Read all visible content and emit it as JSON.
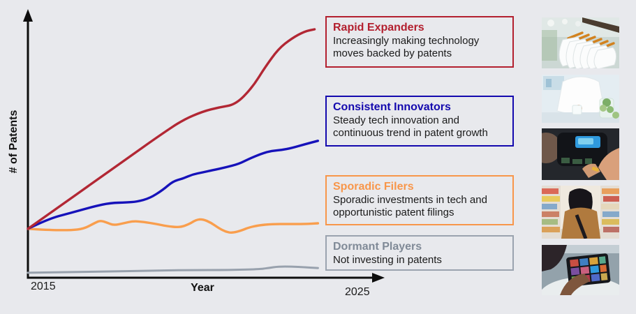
{
  "page": {
    "background": "#E8E9ED"
  },
  "chart": {
    "ylabel": "# of Patents",
    "xlabel": "Year",
    "x_ticks": [
      "2015",
      "2025"
    ],
    "axis_color": "#0d0d0d"
  },
  "chart_data": {
    "type": "line",
    "title": "",
    "xlabel": "Year",
    "ylabel": "# of Patents",
    "x_range": [
      2015,
      2025
    ],
    "y_units": "relative number of patents (0-100, unlabeled qualitative axis)",
    "grid": false,
    "legend_position": "right-annotation-boxes",
    "series": [
      {
        "name": "Rapid Expanders",
        "color": "#B22734",
        "points": [
          [
            2015.0,
            19.7
          ],
          [
            2016.0,
            29.1
          ],
          [
            2017.0,
            38.5
          ],
          [
            2018.0,
            47.9
          ],
          [
            2019.0,
            57.3
          ],
          [
            2019.7,
            63.5
          ],
          [
            2020.3,
            66.9
          ],
          [
            2020.8,
            68.6
          ],
          [
            2021.3,
            69.7
          ],
          [
            2021.8,
            76.4
          ],
          [
            2022.2,
            84.8
          ],
          [
            2022.6,
            92.1
          ],
          [
            2023.0,
            96.3
          ],
          [
            2023.4,
            99.2
          ],
          [
            2023.7,
            100.0
          ]
        ]
      },
      {
        "name": "Consistent Innovators",
        "color": "#1612BA",
        "points": [
          [
            2015.0,
            19.7
          ],
          [
            2015.6,
            23.6
          ],
          [
            2016.3,
            26.1
          ],
          [
            2017.0,
            28.7
          ],
          [
            2017.5,
            30.1
          ],
          [
            2018.0,
            30.3
          ],
          [
            2018.3,
            30.6
          ],
          [
            2018.7,
            32.0
          ],
          [
            2019.1,
            35.4
          ],
          [
            2019.4,
            38.8
          ],
          [
            2019.7,
            39.9
          ],
          [
            2020.0,
            41.6
          ],
          [
            2020.3,
            42.4
          ],
          [
            2020.6,
            43.3
          ],
          [
            2021.0,
            44.4
          ],
          [
            2021.4,
            45.8
          ],
          [
            2021.7,
            47.8
          ],
          [
            2022.1,
            50.0
          ],
          [
            2022.4,
            51.1
          ],
          [
            2022.7,
            51.4
          ],
          [
            2023.0,
            52.2
          ],
          [
            2023.4,
            53.7
          ],
          [
            2023.8,
            55.1
          ]
        ]
      },
      {
        "name": "Sporadic Filers",
        "color": "#F99E4D",
        "points": [
          [
            2015.0,
            19.7
          ],
          [
            2015.6,
            19.2
          ],
          [
            2016.3,
            19.1
          ],
          [
            2016.7,
            19.7
          ],
          [
            2017.05,
            22.2
          ],
          [
            2017.2,
            23.0
          ],
          [
            2017.4,
            22.2
          ],
          [
            2017.6,
            21.1
          ],
          [
            2017.9,
            21.9
          ],
          [
            2018.2,
            22.8
          ],
          [
            2018.5,
            22.5
          ],
          [
            2018.9,
            21.6
          ],
          [
            2019.2,
            20.8
          ],
          [
            2019.6,
            20.2
          ],
          [
            2019.9,
            21.6
          ],
          [
            2020.1,
            23.3
          ],
          [
            2020.3,
            23.6
          ],
          [
            2020.55,
            22.2
          ],
          [
            2020.8,
            19.9
          ],
          [
            2021.0,
            18.5
          ],
          [
            2021.2,
            18.0
          ],
          [
            2021.5,
            19.1
          ],
          [
            2021.7,
            20.2
          ],
          [
            2022.0,
            21.1
          ],
          [
            2022.4,
            21.6
          ],
          [
            2022.9,
            21.6
          ],
          [
            2023.4,
            21.6
          ],
          [
            2023.8,
            21.9
          ]
        ]
      },
      {
        "name": "Dormant Players",
        "color": "#98A1AD",
        "points": [
          [
            2015.0,
            2.0
          ],
          [
            2016.1,
            2.2
          ],
          [
            2017.3,
            2.5
          ],
          [
            2018.6,
            2.8
          ],
          [
            2019.9,
            3.1
          ],
          [
            2021.1,
            3.1
          ],
          [
            2022.0,
            3.4
          ],
          [
            2022.3,
            3.9
          ],
          [
            2022.6,
            4.5
          ],
          [
            2023.0,
            4.5
          ],
          [
            2023.4,
            4.2
          ],
          [
            2023.8,
            3.9
          ]
        ]
      }
    ]
  },
  "annotations": [
    {
      "title": "Rapid Expanders",
      "description": "Increasingly making technology moves backed by patents",
      "border_color": "#B3202F",
      "title_color": "#B3202F"
    },
    {
      "title": "Consistent Innovators",
      "description": "Steady tech innovation and continuous trend in patent growth",
      "border_color": "#1409AE",
      "title_color": "#1409AE"
    },
    {
      "title": "Sporadic Filers",
      "description": "Sporadic investments in tech and opportunistic patent filings",
      "border_color": "#F8964A",
      "title_color": "#F8964A"
    },
    {
      "title": "Dormant Players",
      "description": "Not investing in patents",
      "border_color": "#9AA3AF",
      "title_color": "#808A97"
    }
  ],
  "photos": [
    {
      "subject": "White shirts on wooden hangers in a clothing store"
    },
    {
      "subject": "Researcher in a white lab coat at a table with plants and glassware"
    },
    {
      "subject": "Technician repairing an electronic device with a glowing blue screen"
    },
    {
      "subject": "Shopper with dark hair walking down a grocery store aisle"
    },
    {
      "subject": "Hands browsing a video streaming app on a tablet"
    }
  ]
}
